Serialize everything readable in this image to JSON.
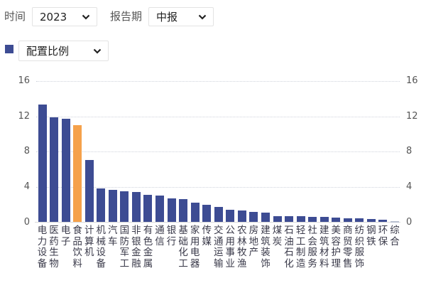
{
  "filters": {
    "time_label": "时间",
    "time_value": "2023",
    "period_label": "报告期",
    "period_value": "中报",
    "metric_value": "配置比例"
  },
  "icons": {
    "dropdown": "chevron-down-icon",
    "legend": "legend-square-icon"
  },
  "colors": {
    "bar": "#3d4c93",
    "highlight": "#f5a14b",
    "near_zero": "#b8bfcf",
    "grid": "#cfd3dc"
  },
  "chart_data": {
    "type": "bar",
    "title": "",
    "xlabel": "",
    "ylabel": "",
    "legend": [
      "配置比例"
    ],
    "legend_position": "top-left",
    "ylim": [
      0,
      16
    ],
    "yticks": [
      0,
      4,
      8,
      12,
      16
    ],
    "y_axis_both_sides": true,
    "grid": true,
    "highlighted_category": "食品饮料",
    "categories": [
      "电力设备",
      "医药生物",
      "电子",
      "食品饮料",
      "计算机",
      "机械设备",
      "汽车",
      "国防军工",
      "非银金融",
      "有色金属",
      "通信",
      "银行",
      "基础化工",
      "家用电器",
      "传媒",
      "交通运输",
      "公用事业",
      "农林牧渔",
      "房地产",
      "建筑装饰",
      "煤炭",
      "石油石化",
      "轻工制造",
      "社会服务",
      "建筑材料",
      "美容护理",
      "商贸零售",
      "纺织服饰",
      "钢铁",
      "环保",
      "综合"
    ],
    "values": [
      13.4,
      11.95,
      11.75,
      11.05,
      7.05,
      3.8,
      3.65,
      3.5,
      3.4,
      3.15,
      3.0,
      2.7,
      2.6,
      2.25,
      1.95,
      1.7,
      1.45,
      1.35,
      1.15,
      1.1,
      0.72,
      0.7,
      0.68,
      0.63,
      0.58,
      0.53,
      0.47,
      0.42,
      0.39,
      0.28,
      0.05
    ]
  }
}
